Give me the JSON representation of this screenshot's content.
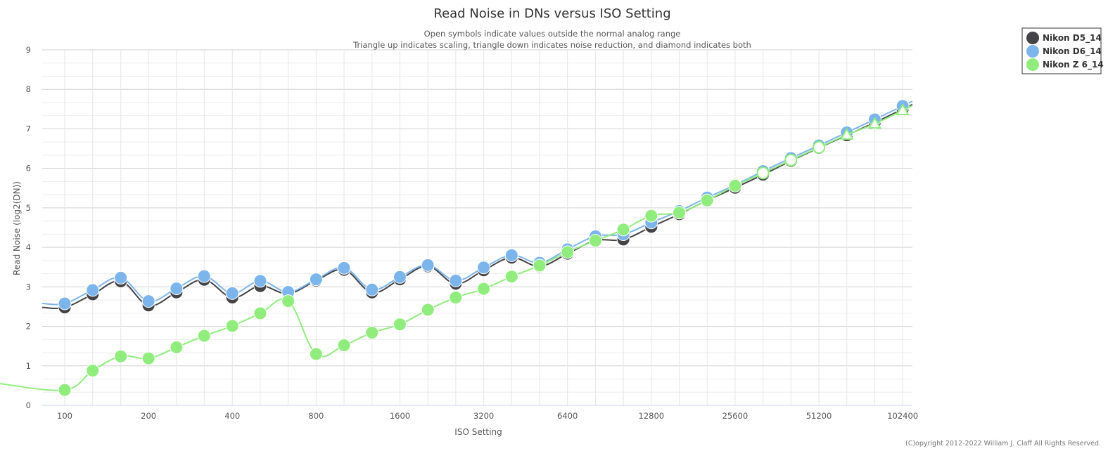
{
  "chart_data": {
    "type": "line",
    "title": "Read Noise in DNs versus ISO Setting",
    "subtitle_lines": [
      "Open symbols indicate values outside the normal analog range",
      "Triangle up indicates scaling, triangle down indicates noise reduction, and diamond indicates both"
    ],
    "xlabel": "ISO Setting",
    "ylabel": "Read Noise (log2(DN))",
    "x_scale": "log2",
    "xlim": [
      83,
      111000
    ],
    "ylim": [
      0,
      9
    ],
    "grid": true,
    "legend_position": "top-right",
    "x_tick_labels": [
      "100",
      "200",
      "400",
      "800",
      "1600",
      "3200",
      "6400",
      "12800",
      "25600",
      "51200",
      "102400"
    ],
    "y_tick_labels": [
      "0",
      "1",
      "2",
      "3",
      "4",
      "5",
      "6",
      "7",
      "8",
      "9"
    ],
    "iso": [
      100,
      126,
      159,
      200,
      252,
      317,
      400,
      504,
      635,
      800,
      1008,
      1270,
      1600,
      2016,
      2540,
      3200,
      4032,
      5080,
      6400,
      8063,
      10159,
      12800,
      16127,
      20319,
      25600,
      32254,
      40637,
      51200,
      64508,
      81275,
      102400
    ],
    "series": [
      {
        "name": "Nikon D5_14",
        "color": "#434348",
        "values": [
          2.48,
          2.81,
          3.14,
          2.53,
          2.86,
          3.18,
          2.73,
          3.02,
          2.83,
          3.16,
          3.43,
          2.86,
          3.19,
          3.52,
          3.08,
          3.42,
          3.74,
          3.52,
          3.84,
          4.17,
          4.2,
          4.52,
          4.84,
          5.19,
          5.51,
          5.84,
          6.19,
          6.52,
          6.84,
          7.16,
          7.5
        ],
        "markers": [
          "filled",
          "filled",
          "filled",
          "filled",
          "filled",
          "filled",
          "filled",
          "filled",
          "filled",
          "filled",
          "filled",
          "filled",
          "filled",
          "filled",
          "filled",
          "filled",
          "filled",
          "filled",
          "filled",
          "filled",
          "filled",
          "filled",
          "filled",
          "filled",
          "filled",
          "filled",
          "filled",
          "filled",
          "filled",
          "filled",
          "filled"
        ]
      },
      {
        "name": "Nikon D6_14",
        "color": "#7cb5ec",
        "values": [
          2.58,
          2.92,
          3.23,
          2.64,
          2.96,
          3.27,
          2.84,
          3.15,
          2.87,
          3.19,
          3.48,
          2.93,
          3.25,
          3.55,
          3.16,
          3.49,
          3.8,
          3.61,
          3.95,
          4.28,
          4.33,
          4.63,
          4.92,
          5.26,
          5.58,
          5.93,
          6.26,
          6.58,
          6.91,
          7.24,
          7.58
        ],
        "markers": [
          "filled",
          "filled",
          "filled",
          "filled",
          "filled",
          "filled",
          "filled",
          "filled",
          "filled",
          "filled",
          "filled",
          "filled",
          "filled",
          "filled",
          "filled",
          "filled",
          "filled",
          "filled",
          "filled",
          "filled",
          "filled",
          "filled",
          "filled",
          "filled",
          "filled",
          "filled",
          "filled",
          "filled",
          "filled",
          "filled",
          "filled"
        ]
      },
      {
        "name": "Nikon Z 6_14",
        "color": "#90ed7d",
        "values": [
          0.39,
          0.88,
          1.24,
          1.19,
          1.47,
          1.76,
          2.01,
          2.33,
          2.64,
          1.3,
          1.52,
          1.84,
          2.05,
          2.42,
          2.73,
          2.95,
          3.26,
          3.54,
          3.88,
          4.17,
          4.45,
          4.8,
          4.88,
          5.19,
          5.56,
          5.88,
          6.21,
          6.53,
          6.85,
          7.13,
          7.47
        ],
        "markers": [
          "filled",
          "filled",
          "filled",
          "filled",
          "filled",
          "filled",
          "filled",
          "filled",
          "filled",
          "filled",
          "filled",
          "filled",
          "filled",
          "filled",
          "filled",
          "filled",
          "filled",
          "filled",
          "filled",
          "filled",
          "filled",
          "filled",
          "filled",
          "filled",
          "filled",
          "open-circle",
          "open-circle",
          "open-circle",
          "open-triangle-up",
          "open-triangle-up",
          "open-triangle-up"
        ]
      }
    ]
  },
  "credit": "(C)opyright 2012-2022 William J. Claff All Rights Reserved."
}
